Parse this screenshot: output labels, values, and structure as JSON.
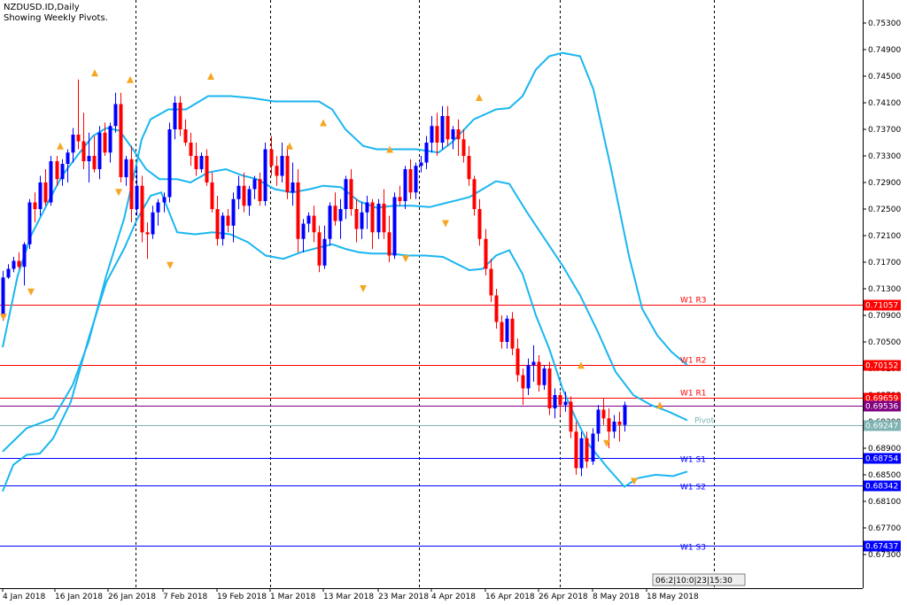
{
  "header": {
    "symbol_line": "NZDUSD.ID,Daily",
    "subtitle": "Showing Weekly Pivots."
  },
  "time_panel": "06:2|10:0|23|15:30",
  "colors": {
    "bull": "#0000ff",
    "bear": "#ff0000",
    "bands": "#1ab6f0",
    "resistance": "#ff0000",
    "support": "#0000ff",
    "pivot": "#7fb3b3",
    "fractal": "#f5a623",
    "current": "#800080"
  },
  "chart_data": {
    "type": "candlestick",
    "ylim": [
      0.6705,
      0.757
    ],
    "y_ticks": [
      "0.75300",
      "0.74900",
      "0.74500",
      "0.74100",
      "0.73700",
      "0.73300",
      "0.72900",
      "0.72500",
      "0.72100",
      "0.71700",
      "0.71300",
      "0.70900",
      "0.70500",
      "0.70100",
      "0.69700",
      "0.69300",
      "0.68900",
      "0.68500",
      "0.68100",
      "0.67700",
      "0.67300"
    ],
    "x_labels": [
      "4 Jan 2018",
      "16 Jan 2018",
      "26 Jan 2018",
      "7 Feb 2018",
      "19 Feb 2018",
      "1 Mar 2018",
      "13 Mar 2018",
      "23 Mar 2018",
      "4 Apr 2018",
      "16 Apr 2018",
      "26 Apr 2018",
      "8 May 2018",
      "18 May 2018"
    ],
    "candles": [
      [
        0.7087,
        0.7157,
        0.7082,
        0.7147
      ],
      [
        0.7147,
        0.7167,
        0.7145,
        0.716
      ],
      [
        0.716,
        0.7178,
        0.7155,
        0.7172
      ],
      [
        0.7172,
        0.7185,
        0.716,
        0.7163
      ],
      [
        0.7163,
        0.72,
        0.7135,
        0.7197
      ],
      [
        0.7197,
        0.7265,
        0.719,
        0.726
      ],
      [
        0.726,
        0.7275,
        0.723,
        0.725
      ],
      [
        0.725,
        0.73,
        0.724,
        0.729
      ],
      [
        0.729,
        0.731,
        0.7255,
        0.726
      ],
      [
        0.726,
        0.733,
        0.7255,
        0.7322
      ],
      [
        0.7322,
        0.733,
        0.7285,
        0.7295
      ],
      [
        0.7295,
        0.7325,
        0.7285,
        0.7318
      ],
      [
        0.7318,
        0.734,
        0.729,
        0.7335
      ],
      [
        0.7335,
        0.7372,
        0.732,
        0.7362
      ],
      [
        0.7362,
        0.7445,
        0.734,
        0.7352
      ],
      [
        0.7352,
        0.7395,
        0.731,
        0.7322
      ],
      [
        0.7322,
        0.7365,
        0.729,
        0.733
      ],
      [
        0.733,
        0.736,
        0.7305,
        0.731
      ],
      [
        0.731,
        0.7375,
        0.7295,
        0.7365
      ],
      [
        0.7365,
        0.738,
        0.733,
        0.7335
      ],
      [
        0.7335,
        0.738,
        0.732,
        0.7375
      ],
      [
        0.7375,
        0.7425,
        0.7365,
        0.7408
      ],
      [
        0.7408,
        0.7425,
        0.729,
        0.7298
      ],
      [
        0.7298,
        0.733,
        0.7285,
        0.7325
      ],
      [
        0.7325,
        0.7345,
        0.723,
        0.725
      ],
      [
        0.725,
        0.7315,
        0.724,
        0.7285
      ],
      [
        0.7285,
        0.73,
        0.72,
        0.7215
      ],
      [
        0.7215,
        0.723,
        0.7175,
        0.7212
      ],
      [
        0.7212,
        0.7255,
        0.7205,
        0.7245
      ],
      [
        0.7245,
        0.7265,
        0.7225,
        0.726
      ],
      [
        0.726,
        0.7275,
        0.7245,
        0.7268
      ],
      [
        0.7268,
        0.738,
        0.726,
        0.737
      ],
      [
        0.737,
        0.742,
        0.7355,
        0.741
      ],
      [
        0.741,
        0.742,
        0.736,
        0.737
      ],
      [
        0.737,
        0.7385,
        0.7345,
        0.735
      ],
      [
        0.735,
        0.7365,
        0.7315,
        0.733
      ],
      [
        0.733,
        0.735,
        0.73,
        0.731
      ],
      [
        0.731,
        0.7335,
        0.7305,
        0.733
      ],
      [
        0.733,
        0.734,
        0.7285,
        0.729
      ],
      [
        0.729,
        0.7305,
        0.7245,
        0.725
      ],
      [
        0.725,
        0.727,
        0.7195,
        0.7205
      ],
      [
        0.7205,
        0.7245,
        0.7195,
        0.724
      ],
      [
        0.724,
        0.725,
        0.7215,
        0.7225
      ],
      [
        0.7225,
        0.7275,
        0.72,
        0.7265
      ],
      [
        0.7265,
        0.73,
        0.725,
        0.7285
      ],
      [
        0.7285,
        0.7305,
        0.7245,
        0.7255
      ],
      [
        0.7255,
        0.7285,
        0.724,
        0.728
      ],
      [
        0.728,
        0.73,
        0.7265,
        0.7295
      ],
      [
        0.7295,
        0.7305,
        0.7255,
        0.7262
      ],
      [
        0.7262,
        0.735,
        0.7255,
        0.734
      ],
      [
        0.734,
        0.736,
        0.73,
        0.7315
      ],
      [
        0.7315,
        0.733,
        0.7285,
        0.73
      ],
      [
        0.73,
        0.735,
        0.729,
        0.733
      ],
      [
        0.733,
        0.7345,
        0.7265,
        0.7275
      ],
      [
        0.7275,
        0.732,
        0.7255,
        0.729
      ],
      [
        0.729,
        0.731,
        0.7185,
        0.7205
      ],
      [
        0.7205,
        0.7235,
        0.7185,
        0.7228
      ],
      [
        0.7228,
        0.7245,
        0.7215,
        0.724
      ],
      [
        0.724,
        0.7255,
        0.72,
        0.7215
      ],
      [
        0.7215,
        0.7225,
        0.7155,
        0.7165
      ],
      [
        0.7165,
        0.7225,
        0.716,
        0.7205
      ],
      [
        0.7205,
        0.726,
        0.7195,
        0.7255
      ],
      [
        0.7255,
        0.7275,
        0.7225,
        0.7232
      ],
      [
        0.7232,
        0.7265,
        0.7205,
        0.725
      ],
      [
        0.725,
        0.73,
        0.7235,
        0.7295
      ],
      [
        0.7295,
        0.731,
        0.724,
        0.725
      ],
      [
        0.725,
        0.7265,
        0.72,
        0.722
      ],
      [
        0.722,
        0.726,
        0.7205,
        0.7245
      ],
      [
        0.7245,
        0.727,
        0.722,
        0.726
      ],
      [
        0.726,
        0.7265,
        0.719,
        0.7215
      ],
      [
        0.7215,
        0.7265,
        0.7205,
        0.7258
      ],
      [
        0.7258,
        0.728,
        0.7205,
        0.7215
      ],
      [
        0.7215,
        0.724,
        0.717,
        0.718
      ],
      [
        0.718,
        0.7275,
        0.7175,
        0.7268
      ],
      [
        0.7268,
        0.7285,
        0.7255,
        0.7262
      ],
      [
        0.7262,
        0.7315,
        0.725,
        0.731
      ],
      [
        0.731,
        0.7325,
        0.7265,
        0.7275
      ],
      [
        0.7275,
        0.732,
        0.7265,
        0.7315
      ],
      [
        0.7315,
        0.733,
        0.7305,
        0.732
      ],
      [
        0.732,
        0.736,
        0.731,
        0.735
      ],
      [
        0.735,
        0.739,
        0.7335,
        0.7375
      ],
      [
        0.7375,
        0.7395,
        0.733,
        0.735
      ],
      [
        0.735,
        0.7405,
        0.734,
        0.739
      ],
      [
        0.739,
        0.7405,
        0.7345,
        0.7355
      ],
      [
        0.7355,
        0.7375,
        0.734,
        0.737
      ],
      [
        0.737,
        0.7385,
        0.733,
        0.7355
      ],
      [
        0.7355,
        0.737,
        0.732,
        0.733
      ],
      [
        0.733,
        0.7345,
        0.7285,
        0.7295
      ],
      [
        0.7295,
        0.73,
        0.724,
        0.725
      ],
      [
        0.725,
        0.7265,
        0.7195,
        0.7205
      ],
      [
        0.7205,
        0.722,
        0.715,
        0.716
      ],
      [
        0.716,
        0.7175,
        0.711,
        0.712
      ],
      [
        0.712,
        0.713,
        0.707,
        0.708
      ],
      [
        0.708,
        0.709,
        0.704,
        0.705
      ],
      [
        0.705,
        0.709,
        0.704,
        0.7085
      ],
      [
        0.7085,
        0.7095,
        0.703,
        0.704
      ],
      [
        0.704,
        0.7055,
        0.699,
        0.7
      ],
      [
        0.7,
        0.701,
        0.6955,
        0.698
      ],
      [
        0.698,
        0.7025,
        0.697,
        0.7015
      ],
      [
        0.7015,
        0.7045,
        0.699,
        0.702
      ],
      [
        0.702,
        0.703,
        0.6975,
        0.6985
      ],
      [
        0.6985,
        0.7015,
        0.6978,
        0.701
      ],
      [
        0.701,
        0.702,
        0.694,
        0.695
      ],
      [
        0.695,
        0.698,
        0.6935,
        0.697
      ],
      [
        0.697,
        0.6975,
        0.694,
        0.6955
      ],
      [
        0.6955,
        0.6975,
        0.6945,
        0.696
      ],
      [
        0.696,
        0.6968,
        0.6905,
        0.6915
      ],
      [
        0.6915,
        0.693,
        0.685,
        0.686
      ],
      [
        0.686,
        0.6915,
        0.6848,
        0.6905
      ],
      [
        0.6905,
        0.6915,
        0.686,
        0.687
      ],
      [
        0.687,
        0.692,
        0.6865,
        0.6912
      ],
      [
        0.6912,
        0.6955,
        0.69,
        0.6948
      ],
      [
        0.6948,
        0.6965,
        0.6925,
        0.6935
      ],
      [
        0.6935,
        0.695,
        0.689,
        0.6915
      ],
      [
        0.6915,
        0.694,
        0.6905,
        0.693
      ],
      [
        0.693,
        0.6945,
        0.69,
        0.6925
      ],
      [
        0.6925,
        0.696,
        0.6915,
        0.6955
      ]
    ],
    "bands": {
      "upper": [
        [
          3,
          0.6885
        ],
        [
          30,
          0.692
        ],
        [
          60,
          0.6935
        ],
        [
          82,
          0.6985
        ],
        [
          100,
          0.705
        ],
        [
          120,
          0.715
        ],
        [
          140,
          0.7235
        ],
        [
          152,
          0.7305
        ],
        [
          160,
          0.7355
        ],
        [
          170,
          0.7385
        ],
        [
          190,
          0.74
        ],
        [
          210,
          0.74
        ],
        [
          235,
          0.742
        ],
        [
          260,
          0.742
        ],
        [
          285,
          0.7417
        ],
        [
          310,
          0.7412
        ],
        [
          340,
          0.7412
        ],
        [
          360,
          0.7412
        ],
        [
          375,
          0.74
        ],
        [
          390,
          0.737
        ],
        [
          410,
          0.7345
        ],
        [
          425,
          0.734
        ],
        [
          450,
          0.734
        ],
        [
          470,
          0.734
        ],
        [
          495,
          0.7335
        ],
        [
          510,
          0.735
        ],
        [
          535,
          0.7385
        ],
        [
          560,
          0.74
        ],
        [
          575,
          0.7402
        ],
        [
          590,
          0.742
        ],
        [
          605,
          0.746
        ],
        [
          620,
          0.748
        ],
        [
          635,
          0.7485
        ],
        [
          655,
          0.748
        ],
        [
          670,
          0.743
        ],
        [
          690,
          0.731
        ],
        [
          710,
          0.718
        ],
        [
          725,
          0.71
        ],
        [
          742,
          0.706
        ],
        [
          758,
          0.7035
        ],
        [
          776,
          0.7015
        ]
      ],
      "middle": [
        [
          3,
          0.7042
        ],
        [
          20,
          0.715
        ],
        [
          35,
          0.721
        ],
        [
          55,
          0.7262
        ],
        [
          70,
          0.73
        ],
        [
          90,
          0.7335
        ],
        [
          105,
          0.736
        ],
        [
          120,
          0.7372
        ],
        [
          135,
          0.7368
        ],
        [
          150,
          0.734
        ],
        [
          165,
          0.731
        ],
        [
          180,
          0.7295
        ],
        [
          200,
          0.7295
        ],
        [
          215,
          0.729
        ],
        [
          235,
          0.7305
        ],
        [
          255,
          0.731
        ],
        [
          275,
          0.73
        ],
        [
          290,
          0.7295
        ],
        [
          310,
          0.728
        ],
        [
          330,
          0.7275
        ],
        [
          350,
          0.728
        ],
        [
          365,
          0.7285
        ],
        [
          385,
          0.7283
        ],
        [
          405,
          0.7262
        ],
        [
          425,
          0.7252
        ],
        [
          445,
          0.7255
        ],
        [
          465,
          0.7255
        ],
        [
          485,
          0.7253
        ],
        [
          500,
          0.7258
        ],
        [
          515,
          0.7263
        ],
        [
          530,
          0.7268
        ],
        [
          545,
          0.728
        ],
        [
          560,
          0.7292
        ],
        [
          575,
          0.7288
        ],
        [
          595,
          0.7245
        ],
        [
          615,
          0.7205
        ],
        [
          635,
          0.7165
        ],
        [
          655,
          0.712
        ],
        [
          675,
          0.7065
        ],
        [
          695,
          0.7005
        ],
        [
          715,
          0.697
        ],
        [
          735,
          0.6955
        ],
        [
          755,
          0.6945
        ],
        [
          776,
          0.6932
        ]
      ],
      "lower": [
        [
          3,
          0.6825
        ],
        [
          15,
          0.6865
        ],
        [
          30,
          0.688
        ],
        [
          45,
          0.6882
        ],
        [
          60,
          0.6905
        ],
        [
          80,
          0.696
        ],
        [
          100,
          0.7055
        ],
        [
          120,
          0.714
        ],
        [
          140,
          0.719
        ],
        [
          155,
          0.7235
        ],
        [
          170,
          0.727
        ],
        [
          182,
          0.7275
        ],
        [
          200,
          0.7215
        ],
        [
          220,
          0.7212
        ],
        [
          240,
          0.7215
        ],
        [
          260,
          0.7212
        ],
        [
          280,
          0.72
        ],
        [
          300,
          0.718
        ],
        [
          320,
          0.7175
        ],
        [
          340,
          0.7185
        ],
        [
          360,
          0.7192
        ],
        [
          375,
          0.7197
        ],
        [
          390,
          0.719
        ],
        [
          405,
          0.7185
        ],
        [
          420,
          0.7183
        ],
        [
          440,
          0.7183
        ],
        [
          460,
          0.718
        ],
        [
          480,
          0.718
        ],
        [
          500,
          0.7178
        ],
        [
          515,
          0.7168
        ],
        [
          530,
          0.7158
        ],
        [
          545,
          0.716
        ],
        [
          560,
          0.718
        ],
        [
          575,
          0.7188
        ],
        [
          590,
          0.7152
        ],
        [
          605,
          0.709
        ],
        [
          620,
          0.704
        ],
        [
          635,
          0.698
        ],
        [
          650,
          0.6935
        ],
        [
          665,
          0.6895
        ],
        [
          685,
          0.6862
        ],
        [
          705,
          0.6832
        ],
        [
          720,
          0.6845
        ],
        [
          740,
          0.685
        ],
        [
          760,
          0.6848
        ],
        [
          776,
          0.6855
        ]
      ]
    },
    "fractals_up": [
      [
        68,
        0.7345
      ],
      [
        107,
        0.7455
      ],
      [
        147,
        0.7445
      ],
      [
        238,
        0.745
      ],
      [
        327,
        0.7345
      ],
      [
        365,
        0.738
      ],
      [
        440,
        0.734
      ],
      [
        541,
        0.7418
      ],
      [
        656,
        0.7015
      ],
      [
        745,
        0.6955
      ]
    ],
    "fractals_down": [
      [
        4,
        0.7087
      ],
      [
        35,
        0.7125
      ],
      [
        134,
        0.7275
      ],
      [
        192,
        0.7165
      ],
      [
        410,
        0.713
      ],
      [
        458,
        0.7175
      ],
      [
        503,
        0.7228
      ],
      [
        685,
        0.6897
      ],
      [
        716,
        0.684
      ]
    ],
    "levels": [
      {
        "name": "W1 R3",
        "value": 0.71057,
        "label": "0.71057",
        "kind": "resistance"
      },
      {
        "name": "W1 R2",
        "value": 0.70152,
        "label": "0.70152",
        "kind": "resistance"
      },
      {
        "name": "W1 R1",
        "value": 0.69659,
        "label": "0.69659",
        "kind": "resistance"
      },
      {
        "name": "",
        "value": 0.69536,
        "label": "0.69536",
        "kind": "current"
      },
      {
        "name": "Pivot",
        "value": 0.69247,
        "label": "0.69247",
        "kind": "pivot"
      },
      {
        "name": "W1 S1",
        "value": 0.68754,
        "label": "0.68754",
        "kind": "support"
      },
      {
        "name": "W1 S2",
        "value": 0.68342,
        "label": "0.68342",
        "kind": "support"
      },
      {
        "name": "W1 S3",
        "value": 0.67437,
        "label": "0.67437",
        "kind": "support"
      }
    ]
  }
}
